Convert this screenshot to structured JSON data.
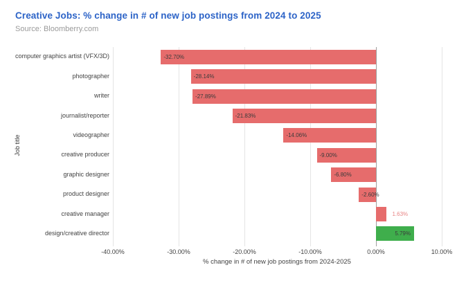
{
  "header": {
    "title": "Creative Jobs: % change in # of new job postings from 2024 to 2025",
    "source": "Source: Bloomberry.com"
  },
  "colors": {
    "title": "#2c63c7",
    "source": "#9a9a9a",
    "negative_bar": "#e66c6c",
    "positive_bar": "#3fae4c",
    "gridline": "#e4e4e4",
    "zero_line": "#9e9e9e",
    "value_label_dark": "#3b3b3b",
    "value_label_red": "#e88585",
    "axis_text": "#424242"
  },
  "chart_data": {
    "type": "bar",
    "orientation": "horizontal",
    "title": "Creative Jobs: % change in # of new job postings from 2024 to 2025",
    "xlabel": "% change in # of new job postings from 2024-2025",
    "ylabel": "Job title",
    "grid": true,
    "xlim": [
      -40,
      10
    ],
    "xticks": [
      -40,
      -30,
      -20,
      -10,
      0,
      10
    ],
    "xtick_labels": [
      "-40.00%",
      "-30.00%",
      "-20.00%",
      "-10.00%",
      "0.00%",
      "10.00%"
    ],
    "categories": [
      "computer graphics artist (VFX/3D)",
      "photographer",
      "writer",
      "journalist/reporter",
      "videographer",
      "creative producer",
      "graphic designer",
      "product designer",
      "creative manager",
      "design/creative director"
    ],
    "values": [
      -32.7,
      -28.14,
      -27.89,
      -21.83,
      -14.06,
      -9.0,
      -6.8,
      -2.6,
      1.63,
      5.79
    ],
    "value_labels": [
      "-32.70%",
      "-28.14%",
      "-27.89%",
      "-21.83%",
      "-14.06%",
      "-9.00%",
      "-6.80%",
      "-2.60%",
      "1.63%",
      "5.79%"
    ],
    "bar_colors": [
      "negative",
      "negative",
      "negative",
      "negative",
      "negative",
      "negative",
      "negative",
      "negative",
      "negative",
      "positive"
    ],
    "label_placements": [
      "inside-start",
      "inside-start",
      "inside-start",
      "inside-start",
      "inside-start",
      "inside-start",
      "inside-start",
      "inside-start",
      "outside-end",
      "inside-end"
    ]
  }
}
